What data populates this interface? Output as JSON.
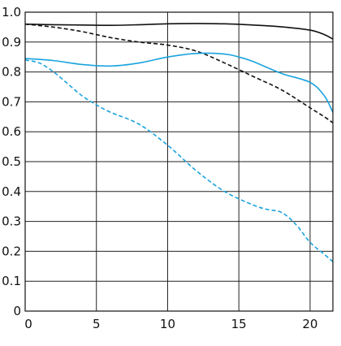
{
  "chart_data": {
    "type": "line",
    "title": "",
    "xlabel": "",
    "ylabel": "",
    "xlim": [
      0,
      21.6
    ],
    "ylim": [
      0,
      1.0
    ],
    "x_ticks": [
      0,
      5,
      10,
      15,
      20
    ],
    "x_tick_labels": [
      "0",
      "5",
      "10",
      "15",
      "20"
    ],
    "y_ticks": [
      0,
      0.1,
      0.2,
      0.3,
      0.4,
      0.5,
      0.6,
      0.7,
      0.8,
      0.9,
      1.0
    ],
    "y_tick_labels": [
      "0",
      "0.1",
      "0.2",
      "0.3",
      "0.4",
      "0.5",
      "0.6",
      "0.7",
      "0.8",
      "0.9",
      "1.0"
    ],
    "grid": true,
    "legend": "none",
    "series": [
      {
        "color": "#111111",
        "dash": "solid",
        "x": [
          0,
          2,
          4,
          6,
          8,
          10,
          12,
          14,
          16,
          18,
          20,
          21,
          21.6
        ],
        "y": [
          0.96,
          0.958,
          0.957,
          0.956,
          0.958,
          0.961,
          0.962,
          0.961,
          0.957,
          0.951,
          0.94,
          0.925,
          0.91
        ]
      },
      {
        "color": "#111111",
        "dash": "dashed",
        "x": [
          0,
          2,
          4,
          6,
          8,
          10,
          12,
          14,
          16,
          18,
          20,
          21,
          21.6
        ],
        "y": [
          0.96,
          0.95,
          0.935,
          0.915,
          0.9,
          0.89,
          0.87,
          0.83,
          0.785,
          0.74,
          0.68,
          0.65,
          0.63
        ]
      },
      {
        "color": "#1aa3dd",
        "dash": "solid",
        "x": [
          0,
          2,
          4,
          6,
          8,
          10,
          12,
          14,
          15,
          16,
          18,
          20,
          21,
          21.6
        ],
        "y": [
          0.845,
          0.838,
          0.825,
          0.82,
          0.83,
          0.85,
          0.862,
          0.86,
          0.85,
          0.835,
          0.795,
          0.765,
          0.72,
          0.665
        ]
      },
      {
        "color": "#1aa3dd",
        "dash": "dashed",
        "x": [
          0,
          1,
          2,
          3,
          4,
          5,
          6,
          8,
          10,
          12,
          14,
          16,
          17,
          18,
          19,
          20,
          21,
          21.6
        ],
        "y": [
          0.84,
          0.83,
          0.8,
          0.76,
          0.72,
          0.69,
          0.665,
          0.625,
          0.555,
          0.47,
          0.4,
          0.355,
          0.34,
          0.33,
          0.29,
          0.23,
          0.19,
          0.165
        ]
      }
    ]
  }
}
